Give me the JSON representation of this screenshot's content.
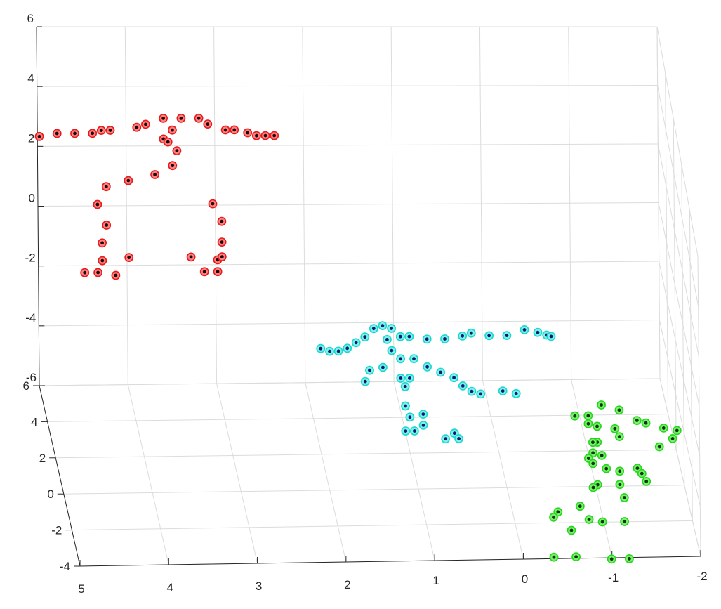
{
  "chart_data": {
    "type": "scatter3d",
    "title": "",
    "xlabel": "",
    "ylabel": "",
    "zlabel": "",
    "grid": true,
    "legend": "none",
    "xlim": [
      -2,
      5
    ],
    "ylim": [
      -4,
      6
    ],
    "zlim": [
      -6,
      6
    ],
    "xticks": [
      "5",
      "4",
      "3",
      "2",
      "1",
      "0",
      "-1",
      "-2"
    ],
    "yticks": [
      "6",
      "4",
      "2",
      "0",
      "-2",
      "-4"
    ],
    "zticks": [
      "6",
      "4",
      "2",
      "0",
      "-2",
      "-4",
      "-6"
    ],
    "series": [
      {
        "colors": {
          "face": "#ff7f7f",
          "edge": "#e81a1a",
          "center": "#1a0a0a"
        },
        "points": [
          [
            5.0,
            5.5,
            2.7
          ],
          [
            4.8,
            5.5,
            2.8
          ],
          [
            4.6,
            5.5,
            2.8
          ],
          [
            4.4,
            5.5,
            2.8
          ],
          [
            4.3,
            5.5,
            2.9
          ],
          [
            4.2,
            5.5,
            2.9
          ],
          [
            3.9,
            5.5,
            3.0
          ],
          [
            3.8,
            5.5,
            3.1
          ],
          [
            3.6,
            5.5,
            3.3
          ],
          [
            3.4,
            5.5,
            3.3
          ],
          [
            3.2,
            5.5,
            3.3
          ],
          [
            3.1,
            5.5,
            3.1
          ],
          [
            2.9,
            5.5,
            2.9
          ],
          [
            2.8,
            5.5,
            2.9
          ],
          [
            2.65,
            5.5,
            2.8
          ],
          [
            2.55,
            5.5,
            2.7
          ],
          [
            2.45,
            5.5,
            2.7
          ],
          [
            2.35,
            5.5,
            2.7
          ],
          [
            3.6,
            5.5,
            2.6
          ],
          [
            3.45,
            5.5,
            2.2
          ],
          [
            3.5,
            5.5,
            1.7
          ],
          [
            3.7,
            5.5,
            1.4
          ],
          [
            4.0,
            5.5,
            1.2
          ],
          [
            4.25,
            5.5,
            1.0
          ],
          [
            4.35,
            5.5,
            0.4
          ],
          [
            3.05,
            5.5,
            0.4
          ],
          [
            2.95,
            5.5,
            -0.2
          ],
          [
            4.25,
            5.5,
            -0.3
          ],
          [
            4.3,
            5.5,
            -0.9
          ],
          [
            2.95,
            5.5,
            -0.9
          ],
          [
            4.0,
            5.5,
            -1.4
          ],
          [
            3.3,
            5.5,
            -1.4
          ],
          [
            4.3,
            5.5,
            -1.5
          ],
          [
            3.0,
            5.5,
            -1.5
          ],
          [
            4.35,
            5.5,
            -1.9
          ],
          [
            4.15,
            5.5,
            -2.0
          ],
          [
            3.15,
            5.5,
            -1.9
          ],
          [
            3.0,
            5.5,
            -1.9
          ],
          [
            2.95,
            5.5,
            -1.4
          ],
          [
            4.5,
            5.5,
            -1.9
          ],
          [
            3.5,
            5.5,
            2.9
          ],
          [
            3.55,
            5.5,
            2.5
          ]
        ]
      },
      {
        "colors": {
          "face": "#7ff2e6",
          "edge": "#18d8d0",
          "center": "#0a1a7a"
        },
        "points": [
          [
            2.0,
            2.0,
            -2.2
          ],
          [
            1.9,
            2.0,
            -2.3
          ],
          [
            1.8,
            2.0,
            -2.3
          ],
          [
            1.7,
            2.0,
            -2.2
          ],
          [
            1.6,
            2.0,
            -2.0
          ],
          [
            1.5,
            2.0,
            -1.8
          ],
          [
            1.4,
            2.0,
            -1.5
          ],
          [
            1.3,
            2.0,
            -1.4
          ],
          [
            1.2,
            2.0,
            -1.5
          ],
          [
            1.1,
            2.0,
            -1.8
          ],
          [
            1.0,
            2.0,
            -1.8
          ],
          [
            0.8,
            2.0,
            -1.9
          ],
          [
            0.6,
            2.0,
            -1.9
          ],
          [
            0.4,
            2.0,
            -1.8
          ],
          [
            0.3,
            2.0,
            -1.7
          ],
          [
            0.1,
            2.0,
            -1.8
          ],
          [
            -0.1,
            2.0,
            -1.8
          ],
          [
            -0.3,
            2.0,
            -1.6
          ],
          [
            -0.45,
            2.0,
            -1.7
          ],
          [
            -0.55,
            2.0,
            -1.8
          ],
          [
            -0.6,
            2.0,
            -1.85
          ],
          [
            1.25,
            2.0,
            -1.9
          ],
          [
            1.2,
            2.0,
            -2.3
          ],
          [
            1.1,
            2.0,
            -2.6
          ],
          [
            0.95,
            2.0,
            -2.6
          ],
          [
            0.8,
            2.0,
            -2.9
          ],
          [
            0.65,
            2.0,
            -3.1
          ],
          [
            0.5,
            2.0,
            -3.3
          ],
          [
            0.4,
            2.0,
            -3.6
          ],
          [
            0.3,
            2.0,
            -3.8
          ],
          [
            0.2,
            2.0,
            -3.9
          ],
          [
            -0.05,
            2.0,
            -3.8
          ],
          [
            -0.2,
            2.0,
            -3.9
          ],
          [
            1.05,
            2.0,
            -3.6
          ],
          [
            1.1,
            2.0,
            -3.3
          ],
          [
            1.3,
            2.0,
            -2.9
          ],
          [
            1.45,
            2.0,
            -3.0
          ],
          [
            1.5,
            2.0,
            -3.4
          ],
          [
            1.05,
            2.0,
            -4.3
          ],
          [
            1.0,
            2.0,
            -4.7
          ],
          [
            1.05,
            2.0,
            -5.2
          ],
          [
            0.85,
            2.0,
            -5.0
          ],
          [
            0.85,
            2.0,
            -4.6
          ],
          [
            0.6,
            2.0,
            -5.5
          ],
          [
            0.5,
            2.0,
            -5.3
          ],
          [
            0.45,
            2.0,
            -5.5
          ],
          [
            0.95,
            2.0,
            -5.2
          ],
          [
            1.0,
            2.0,
            -3.3
          ]
        ]
      },
      {
        "colors": {
          "face": "#7fee70",
          "edge": "#22d81a",
          "center": "#0a3a0a"
        },
        "points": [
          [
            -0.75,
            -0.5,
            -3.0
          ],
          [
            -0.9,
            -0.5,
            -3.0
          ],
          [
            -1.05,
            -0.5,
            -2.6
          ],
          [
            -1.25,
            -0.5,
            -2.8
          ],
          [
            -1.45,
            -0.5,
            -3.2
          ],
          [
            -1.55,
            -0.5,
            -3.3
          ],
          [
            -1.75,
            -0.5,
            -3.5
          ],
          [
            -1.9,
            -0.5,
            -3.6
          ],
          [
            -1.85,
            -0.5,
            -3.9
          ],
          [
            -1.7,
            -0.5,
            -4.2
          ],
          [
            -0.9,
            -0.5,
            -3.3
          ],
          [
            -1.0,
            -0.5,
            -3.4
          ],
          [
            -1.2,
            -0.5,
            -3.5
          ],
          [
            -1.25,
            -0.5,
            -3.8
          ],
          [
            -1.0,
            -0.5,
            -4.0
          ],
          [
            -0.95,
            -0.5,
            -4.0
          ],
          [
            -0.95,
            -0.5,
            -4.4
          ],
          [
            -1.05,
            -0.5,
            -4.5
          ],
          [
            -0.9,
            -0.5,
            -4.6
          ],
          [
            -0.95,
            -0.5,
            -4.8
          ],
          [
            -1.1,
            -0.5,
            -5.0
          ],
          [
            -1.25,
            -0.5,
            -5.1
          ],
          [
            -1.45,
            -0.5,
            -5.0
          ],
          [
            -1.5,
            -0.5,
            -5.2
          ],
          [
            -1.55,
            -0.5,
            -5.5
          ],
          [
            -1.25,
            -0.5,
            -5.6
          ],
          [
            -1.0,
            -0.5,
            -5.6
          ],
          [
            -0.95,
            -0.5,
            -5.7
          ],
          [
            -1.3,
            -0.5,
            -6.1
          ],
          [
            -0.8,
            -0.5,
            -6.4
          ],
          [
            -0.55,
            -0.5,
            -6.6
          ],
          [
            -0.5,
            -0.5,
            -6.8
          ],
          [
            -0.9,
            -0.5,
            -6.9
          ],
          [
            -1.05,
            -0.5,
            -7.0
          ],
          [
            -1.3,
            -0.5,
            -7.0
          ],
          [
            -0.7,
            -0.5,
            -7.3
          ],
          [
            -0.5,
            -0.5,
            -8.3
          ],
          [
            -0.75,
            -0.5,
            -8.3
          ],
          [
            -1.15,
            -0.5,
            -8.4
          ],
          [
            -1.35,
            -0.5,
            -8.4
          ]
        ]
      }
    ]
  }
}
